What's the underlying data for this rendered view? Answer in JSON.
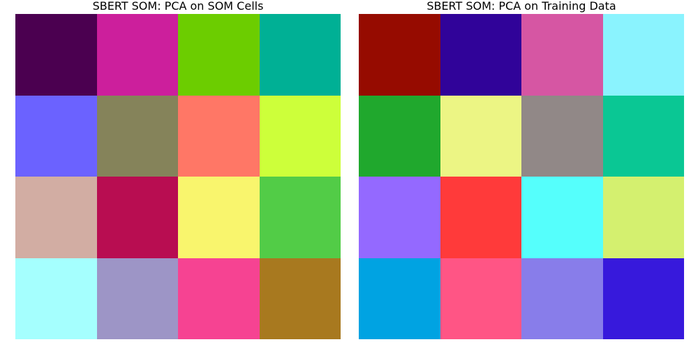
{
  "chart_data": [
    {
      "type": "heatmap",
      "title": "SBERT SOM: PCA on SOM Cells",
      "rows": 4,
      "cols": 4,
      "cells": [
        [
          "#4b0050",
          "#cc1f9c",
          "#6ccd00",
          "#00b095"
        ],
        [
          "#6b62ff",
          "#85835a",
          "#ff7766",
          "#cdff3a"
        ],
        [
          "#d2ada3",
          "#b80d51",
          "#f9f56d",
          "#52cc47"
        ],
        [
          "#a5fffe",
          "#9d95c6",
          "#f64392",
          "#a8791f"
        ]
      ]
    },
    {
      "type": "heatmap",
      "title": "SBERT SOM: PCA on Training Data",
      "rows": 4,
      "cols": 4,
      "cells": [
        [
          "#960b00",
          "#300399",
          "#d656a3",
          "#8af3fe"
        ],
        [
          "#20a82d",
          "#ecf584",
          "#918887",
          "#0ac794"
        ],
        [
          "#9469ff",
          "#ff3a3a",
          "#55fffc",
          "#d4f06f"
        ],
        [
          "#00a3e2",
          "#ff5585",
          "#887dea",
          "#3719dc"
        ]
      ]
    }
  ]
}
